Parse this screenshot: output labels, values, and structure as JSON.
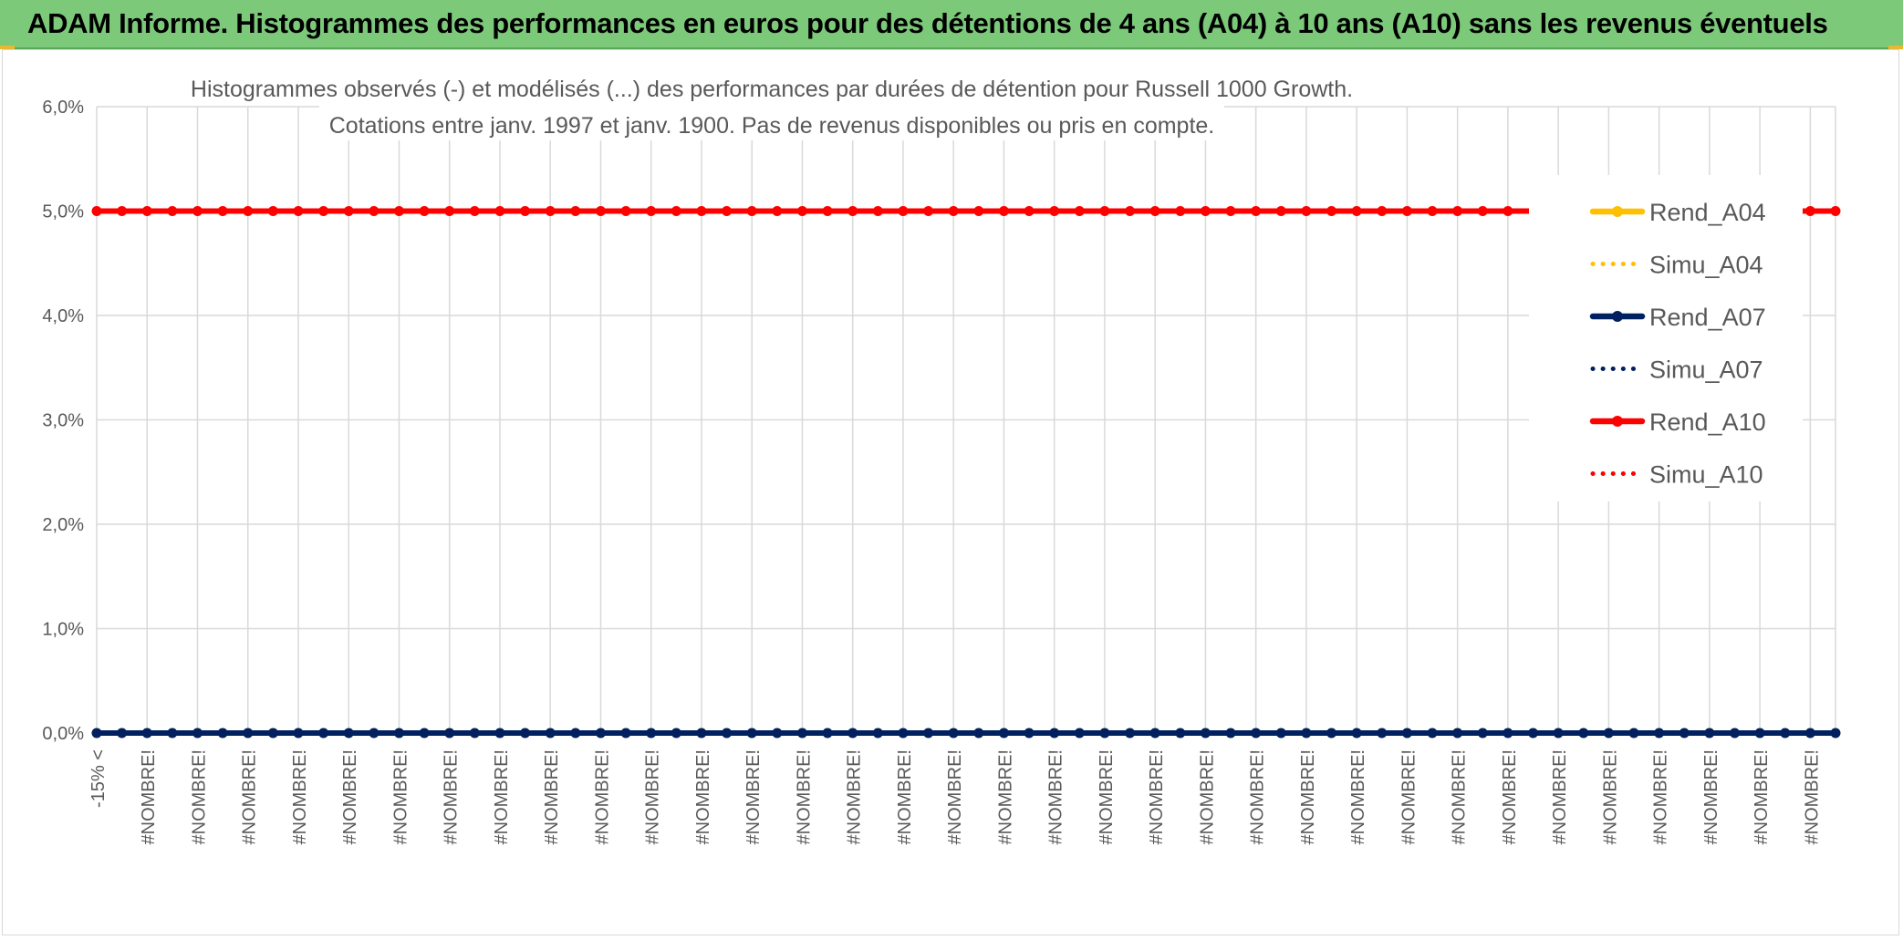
{
  "header": {
    "title": "ADAM Informe. Histogrammes des performances en euros pour des détentions de 4 ans (A04) à 10 ans (A10) sans les revenus éventuels"
  },
  "colors": {
    "header_bg": "#7cc97a",
    "grid": "#d9d9d9",
    "A04": "#ffc000",
    "A07": "#002060",
    "A10": "#ff0000"
  },
  "chart_data": {
    "type": "line",
    "title_lines": [
      "Histogrammes observés (-) et modélisés (...) des performances par durées de détention pour Russell 1000 Growth.",
      "Cotations entre janv. 1997 et janv. 1900. Pas de revenus disponibles ou pris en compte."
    ],
    "ylim": [
      0,
      6
    ],
    "y_ticks": [
      "0,0%",
      "1,0%",
      "2,0%",
      "3,0%",
      "4,0%",
      "5,0%",
      "6,0%"
    ],
    "x_first_label": "-15% <",
    "x_repeat_label": "#NOMBRE!",
    "n_categories": 70,
    "legend_position": "right",
    "series": [
      {
        "name": "Rend_A04",
        "style": "solid",
        "color": "#ffc000",
        "value": 0
      },
      {
        "name": "Simu_A04",
        "style": "dotted",
        "color": "#ffc000",
        "value": 0
      },
      {
        "name": "Rend_A07",
        "style": "solid",
        "color": "#002060",
        "value": 0
      },
      {
        "name": "Simu_A07",
        "style": "dotted",
        "color": "#002060",
        "value": 0
      },
      {
        "name": "Rend_A10",
        "style": "solid",
        "color": "#ff0000",
        "value": 5
      },
      {
        "name": "Simu_A10",
        "style": "dotted",
        "color": "#ff0000",
        "value": 0
      }
    ]
  }
}
